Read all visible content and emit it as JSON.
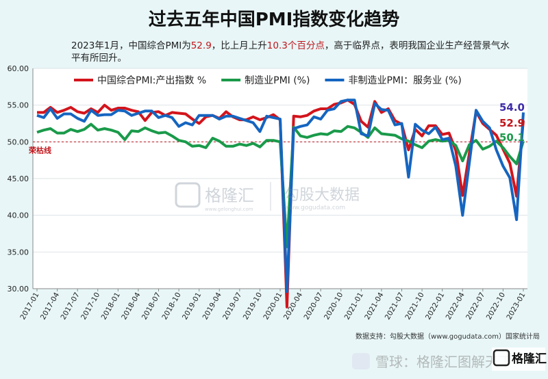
{
  "chart_data": {
    "type": "line",
    "title": "过去五年中国PMI指数变化趋势",
    "subtitle": {
      "p1": "2023年1月，中国综合PMI为",
      "p2": "52.9",
      "p3": "，比上月上升",
      "p4": "10.3个百分点",
      "p5": "，高于临界点，表明我国企业生产经营景气水平有所回升。"
    },
    "ylim": [
      30,
      60
    ],
    "yticks": [
      "30.00",
      "35.00",
      "40.00",
      "45.00",
      "50.00",
      "55.00",
      "60.00"
    ],
    "x": [
      "2017-01",
      "2017-02",
      "2017-03",
      "2017-04",
      "2017-05",
      "2017-06",
      "2017-07",
      "2017-08",
      "2017-09",
      "2017-10",
      "2017-11",
      "2017-12",
      "2018-01",
      "2018-02",
      "2018-03",
      "2018-04",
      "2018-05",
      "2018-06",
      "2018-07",
      "2018-08",
      "2018-09",
      "2018-10",
      "2018-11",
      "2018-12",
      "2019-01",
      "2019-02",
      "2019-03",
      "2019-04",
      "2019-05",
      "2019-06",
      "2019-07",
      "2019-08",
      "2019-09",
      "2019-10",
      "2019-11",
      "2019-12",
      "2020-01",
      "2020-02",
      "2020-03",
      "2020-04",
      "2020-05",
      "2020-06",
      "2020-07",
      "2020-08",
      "2020-09",
      "2020-10",
      "2020-11",
      "2020-12",
      "2021-01",
      "2021-02",
      "2021-03",
      "2021-04",
      "2021-05",
      "2021-06",
      "2021-07",
      "2021-08",
      "2021-09",
      "2021-10",
      "2021-11",
      "2021-12",
      "2022-01",
      "2022-02",
      "2022-03",
      "2022-04",
      "2022-05",
      "2022-06",
      "2022-07",
      "2022-08",
      "2022-09",
      "2022-10",
      "2022-11",
      "2022-12",
      "2023-01"
    ],
    "xtick_labels": [
      "2017-01",
      "2017-04",
      "2017-07",
      "2017-10",
      "2018-01",
      "2018-04",
      "2018-07",
      "2018-10",
      "2019-01",
      "2019-04",
      "2019-07",
      "2019-10",
      "2020-01",
      "2020-04",
      "2020-07",
      "2020-10",
      "2021-01",
      "2021-04",
      "2021-07",
      "2021-10",
      "2022-01",
      "2022-04",
      "2022-07",
      "2022-10",
      "2023-01"
    ],
    "series": [
      {
        "name": "中国综合PMI:产出指数 %",
        "color": "#d3141c",
        "values": [
          54.0,
          54.0,
          54.7,
          54.0,
          54.3,
          54.7,
          54.1,
          53.9,
          54.5,
          54.0,
          55.0,
          54.3,
          54.6,
          54.6,
          54.3,
          54.1,
          52.9,
          54.0,
          54.1,
          53.6,
          54.0,
          53.9,
          53.8,
          53.1,
          52.5,
          53.4,
          53.6,
          53.2,
          54.1,
          53.4,
          53.0,
          53.0,
          53.4,
          53.0,
          53.3,
          53.7,
          53.0,
          27.5,
          53.5,
          53.4,
          53.6,
          54.2,
          54.5,
          54.5,
          55.1,
          55.3,
          55.7,
          55.1,
          52.8,
          52.0,
          55.5,
          54.0,
          54.5,
          52.9,
          52.4,
          48.9,
          51.7,
          50.8,
          52.2,
          52.2,
          51.0,
          51.2,
          48.8,
          42.7,
          48.4,
          54.1,
          52.5,
          51.7,
          50.9,
          49.0,
          47.1,
          42.6,
          52.9
        ]
      },
      {
        "name": "制造业PMI (%)",
        "color": "#1a9a4a",
        "values": [
          51.3,
          51.6,
          51.8,
          51.2,
          51.2,
          51.7,
          51.4,
          51.7,
          52.4,
          51.6,
          51.8,
          51.6,
          51.3,
          50.3,
          51.5,
          51.4,
          51.9,
          51.5,
          51.2,
          51.3,
          50.8,
          50.2,
          50.0,
          49.4,
          49.5,
          49.2,
          50.5,
          50.1,
          49.4,
          49.4,
          49.7,
          49.5,
          49.8,
          49.3,
          50.2,
          50.2,
          50.0,
          35.7,
          52.0,
          50.8,
          50.6,
          50.9,
          51.1,
          51.0,
          51.5,
          51.4,
          52.1,
          51.9,
          51.3,
          50.6,
          51.9,
          51.1,
          51.0,
          50.9,
          50.4,
          50.1,
          49.6,
          49.2,
          50.1,
          50.3,
          50.1,
          50.2,
          49.5,
          47.4,
          49.6,
          50.2,
          49.0,
          49.4,
          50.1,
          49.2,
          48.0,
          47.0,
          50.1
        ]
      },
      {
        "name": "非制造业PMI：服务业 (%)",
        "color": "#1565c0",
        "values": [
          53.6,
          53.3,
          54.5,
          53.2,
          53.8,
          53.8,
          53.2,
          52.8,
          54.3,
          53.6,
          53.7,
          53.7,
          54.3,
          54.2,
          53.6,
          53.9,
          54.2,
          54.2,
          53.3,
          53.6,
          53.3,
          52.1,
          52.6,
          52.3,
          53.6,
          53.6,
          53.6,
          53.1,
          53.5,
          53.5,
          53.2,
          52.9,
          52.6,
          51.4,
          53.5,
          53.3,
          53.1,
          29.6,
          51.8,
          52.1,
          52.3,
          53.4,
          53.1,
          54.3,
          54.5,
          55.5,
          55.7,
          55.7,
          51.1,
          50.8,
          55.2,
          54.4,
          54.3,
          52.3,
          52.5,
          45.2,
          52.4,
          51.6,
          51.1,
          52.0,
          50.3,
          50.5,
          46.7,
          40.0,
          47.1,
          54.3,
          52.8,
          51.9,
          48.9,
          46.7,
          45.1,
          39.4,
          54.0
        ]
      }
    ],
    "end_labels": [
      "54.0",
      "52.9",
      "50.1"
    ],
    "end_label_colors": [
      "#3d2ba8",
      "#c0141a",
      "#1a9a4a"
    ],
    "reference_line": {
      "value": 50,
      "label": "荣枯线",
      "color": "#c0141a"
    },
    "source": "数据支持：勾股大数据（www.gogudata.com）国家统计局"
  },
  "watermark": {
    "brand": "格隆汇",
    "brand_url": "www.gelonghui.com",
    "data": "勾股大数据",
    "data_url": "www.gogudata.com"
  },
  "footer": {
    "watermark": "雪球：格隆汇图解天下",
    "logo": "格隆汇"
  }
}
